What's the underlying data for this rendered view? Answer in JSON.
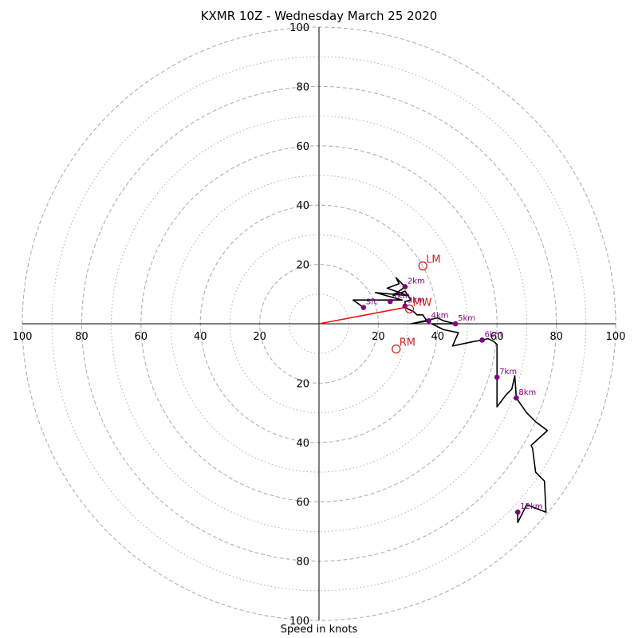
{
  "chart_data": {
    "type": "line",
    "title": "KXMR 10Z - Wednesday March 25 2020",
    "xlabel": "Speed in knots",
    "ylabel": "",
    "xlim": [
      -100,
      100
    ],
    "ylim": [
      -100,
      100
    ],
    "grid": true,
    "rings": {
      "major": [
        20,
        40,
        60,
        80,
        100
      ],
      "minor": [
        10,
        30,
        50,
        70,
        90
      ]
    },
    "x_ticks": [
      {
        "value": -100,
        "label": "100"
      },
      {
        "value": -80,
        "label": "80"
      },
      {
        "value": -60,
        "label": "60"
      },
      {
        "value": -40,
        "label": "40"
      },
      {
        "value": -20,
        "label": "20"
      },
      {
        "value": 20,
        "label": "20"
      },
      {
        "value": 40,
        "label": "40"
      },
      {
        "value": 60,
        "label": "60"
      },
      {
        "value": 80,
        "label": "80"
      },
      {
        "value": 100,
        "label": "100"
      }
    ],
    "y_ticks": [
      {
        "value": 100,
        "label": "100"
      },
      {
        "value": 80,
        "label": "80"
      },
      {
        "value": 60,
        "label": "60"
      },
      {
        "value": 40,
        "label": "40"
      },
      {
        "value": 20,
        "label": "20"
      },
      {
        "value": -20,
        "label": "20"
      },
      {
        "value": -40,
        "label": "40"
      },
      {
        "value": -60,
        "label": "60"
      },
      {
        "value": -80,
        "label": "80"
      },
      {
        "value": -100,
        "label": "100"
      }
    ],
    "colors": {
      "trace": "#000000",
      "markers": "#800080",
      "storm_motion": "#cc2222",
      "shear_vector": "#ee1111",
      "grid": "#b0b0b0"
    },
    "series": [
      {
        "points": [
          {
            "x": 15,
            "y": 5.5
          },
          {
            "x": 11.5,
            "y": 8
          },
          {
            "x": 28,
            "y": 8
          },
          {
            "x": 19,
            "y": 10.5
          },
          {
            "x": 30,
            "y": 9.5
          },
          {
            "x": 23,
            "y": 12
          },
          {
            "x": 27,
            "y": 13.5
          },
          {
            "x": 26,
            "y": 15.5
          },
          {
            "x": 29,
            "y": 12.5
          },
          {
            "x": 25,
            "y": 9.5
          },
          {
            "x": 29,
            "y": 11
          },
          {
            "x": 31,
            "y": 8
          },
          {
            "x": 29,
            "y": 7.5
          },
          {
            "x": 29,
            "y": 5.5
          },
          {
            "x": 32,
            "y": 4
          },
          {
            "x": 33,
            "y": 3
          },
          {
            "x": 35,
            "y": 3
          },
          {
            "x": 36,
            "y": 1.5
          },
          {
            "x": 37,
            "y": 1
          },
          {
            "x": 31,
            "y": 0
          },
          {
            "x": 40,
            "y": 2
          },
          {
            "x": 42,
            "y": 1
          },
          {
            "x": 46,
            "y": 0
          },
          {
            "x": 38,
            "y": 0
          },
          {
            "x": 42,
            "y": -2
          },
          {
            "x": 47,
            "y": -3
          },
          {
            "x": 45,
            "y": -7.5
          },
          {
            "x": 52,
            "y": -6
          },
          {
            "x": 55,
            "y": -5.5
          },
          {
            "x": 57,
            "y": -5
          },
          {
            "x": 59,
            "y": -6
          },
          {
            "x": 60,
            "y": -7
          },
          {
            "x": 60,
            "y": -18
          },
          {
            "x": 60,
            "y": -28
          },
          {
            "x": 63,
            "y": -24
          },
          {
            "x": 65,
            "y": -22
          },
          {
            "x": 66,
            "y": -17.5
          },
          {
            "x": 66.5,
            "y": -25
          },
          {
            "x": 70,
            "y": -30
          },
          {
            "x": 73,
            "y": -33
          },
          {
            "x": 77,
            "y": -36
          },
          {
            "x": 71.5,
            "y": -41
          },
          {
            "x": 72,
            "y": -42
          },
          {
            "x": 73,
            "y": -50
          },
          {
            "x": 75,
            "y": -52
          },
          {
            "x": 76,
            "y": -53
          },
          {
            "x": 76.5,
            "y": -63.5
          },
          {
            "x": 70,
            "y": -61
          },
          {
            "x": 67,
            "y": -67
          },
          {
            "x": 67,
            "y": -63.5
          }
        ]
      }
    ],
    "height_markers": [
      {
        "label": "Sfc",
        "x": 15,
        "y": 5.5
      },
      {
        "label": "1km",
        "x": 24,
        "y": 7.5
      },
      {
        "label": "2km",
        "x": 29,
        "y": 12.5
      },
      {
        "label": "3km",
        "x": 29,
        "y": 6
      },
      {
        "label": "4km",
        "x": 37,
        "y": 1
      },
      {
        "label": "5km",
        "x": 46,
        "y": 0
      },
      {
        "label": "6km",
        "x": 55,
        "y": -5.5
      },
      {
        "label": "7km",
        "x": 60,
        "y": -18
      },
      {
        "label": "8km",
        "x": 66.5,
        "y": -25
      },
      {
        "label": "12km",
        "x": 67,
        "y": -63.5
      }
    ],
    "storm_motion": [
      {
        "label": "LM",
        "x": 35,
        "y": 19.5
      },
      {
        "label": "MW",
        "x": 30.5,
        "y": 5
      },
      {
        "label": "RM",
        "x": 26,
        "y": -8.5
      }
    ],
    "shear_vector": {
      "from": [
        0,
        0
      ],
      "to": [
        29,
        5.5
      ]
    }
  }
}
